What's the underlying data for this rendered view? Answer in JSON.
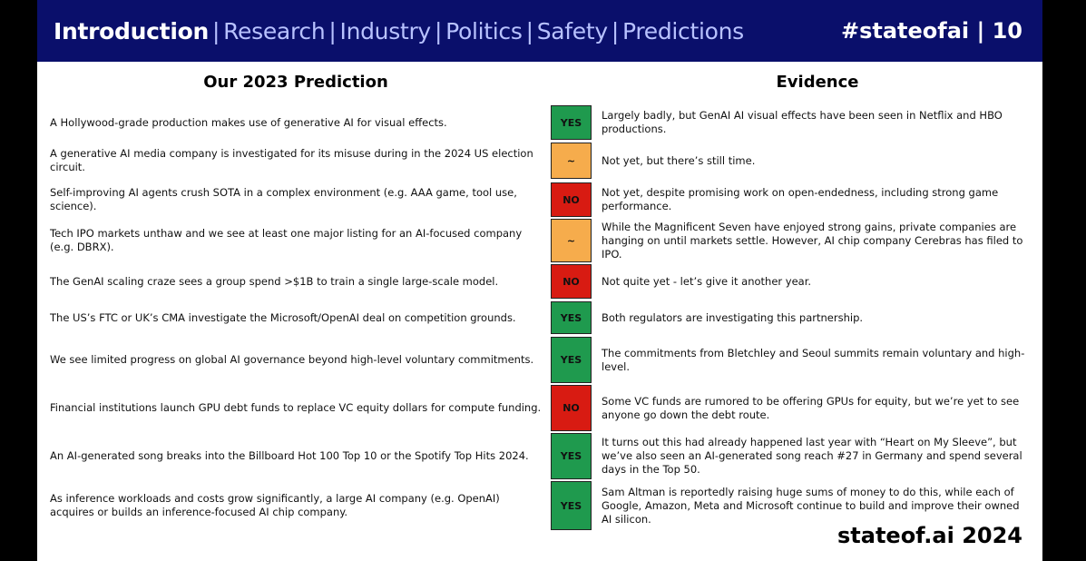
{
  "header": {
    "current_section": "Introduction",
    "sections": [
      "Research",
      "Industry",
      "Politics",
      "Safety",
      "Predictions"
    ],
    "tag_and_page": "#stateofai | 10"
  },
  "columns": {
    "prediction_title": "Our 2023 Prediction",
    "evidence_title": "Evidence"
  },
  "rows": [
    {
      "prediction": "A Hollywood-grade production makes use of generative AI for visual effects.",
      "verdict": "YES",
      "evidence": "Largely badly, but GenAI AI visual effects have been seen in Netflix and HBO productions."
    },
    {
      "prediction": "A generative AI media company is investigated for its misuse during in the 2024 US election circuit.",
      "verdict": "~",
      "evidence": "Not yet, but there’s still time."
    },
    {
      "prediction": "Self-improving AI agents crush SOTA in a complex environment (e.g. AAA game, tool use, science).",
      "verdict": "NO",
      "evidence": "Not yet, despite promising work on open-endedness, including strong game performance."
    },
    {
      "prediction": "Tech IPO markets unthaw and we see at least one major listing for an AI-focused company (e.g. DBRX).",
      "verdict": "~",
      "evidence": "While the Magnificent Seven have enjoyed strong gains, private companies are hanging on until markets settle. However, AI chip company Cerebras has filed to IPO."
    },
    {
      "prediction": "The GenAI scaling craze sees a group spend >$1B to train a single large-scale model.",
      "verdict": "NO",
      "evidence": "Not quite yet - let’s give it another year."
    },
    {
      "prediction": "The US’s FTC or UK’s CMA investigate the Microsoft/OpenAI deal on competition grounds.",
      "verdict": "YES",
      "evidence": "Both regulators are investigating this partnership."
    },
    {
      "prediction": "We see limited progress on global AI governance beyond high-level voluntary commitments.",
      "verdict": "YES",
      "evidence": "The commitments from Bletchley and Seoul summits remain voluntary and high-level."
    },
    {
      "prediction": "Financial institutions launch GPU debt funds to replace VC equity dollars for compute funding.",
      "verdict": "NO",
      "evidence": "Some VC funds are rumored to be offering GPUs for equity, but we’re yet to see anyone go down the debt route."
    },
    {
      "prediction": "An AI-generated song breaks into the Billboard Hot 100 Top 10 or the Spotify Top Hits 2024.",
      "verdict": "YES",
      "evidence": "It turns out this had already happened last year with “Heart on My Sleeve”, but we’ve also seen an AI-generated song reach #27 in Germany and spend several days in the Top 50."
    },
    {
      "prediction": "As inference workloads and costs grow significantly, a large AI company (e.g. OpenAI) acquires or builds an inference-focused AI chip company.",
      "verdict": "YES",
      "evidence": "Sam Altman is reportedly raising huge sums of money to do this, while each of Google, Amazon, Meta and Microsoft continue to build and improve their owned AI silicon."
    }
  ],
  "footer": {
    "brand": "stateof.ai 2024"
  },
  "colors": {
    "header_bg": "#0a0f6b",
    "yes": "#1f9a4e",
    "no": "#d81b12",
    "partial": "#f6ac4c"
  }
}
